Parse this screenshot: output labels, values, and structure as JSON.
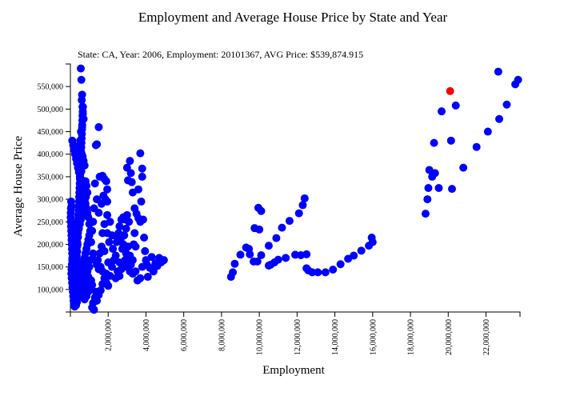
{
  "colors": {
    "point": "#0000ff",
    "highlight": "#ff0000",
    "axis": "#000000"
  },
  "chart_data": {
    "type": "scatter",
    "title": "Employment and Average House Price by State and Year",
    "subtitle": "State: CA, Year: 2006, Employment: 20101367, AVG Price: $539,874.915",
    "xlabel": "Employment",
    "ylabel": "Average House Price",
    "xlim": [
      0,
      23800000
    ],
    "ylim": [
      50000,
      600000
    ],
    "x_ticks": [
      2000000,
      4000000,
      6000000,
      8000000,
      10000000,
      12000000,
      14000000,
      16000000,
      18000000,
      20000000,
      22000000
    ],
    "x_tick_labels": [
      "2,000,000",
      "4,000,000",
      "6,000,000",
      "8,000,000",
      "10,000,000",
      "12,000,000",
      "14,000,000",
      "16,000,000",
      "18,000,000",
      "20,000,000",
      "22,000,000"
    ],
    "y_ticks": [
      100000,
      150000,
      200000,
      250000,
      300000,
      350000,
      400000,
      450000,
      500000,
      550000
    ],
    "y_tick_labels": [
      "100,000",
      "150,000",
      "200,000",
      "250,000",
      "300,000",
      "350,000",
      "400,000",
      "450,000",
      "500,000",
      "550,000"
    ],
    "grid": false,
    "highlight": {
      "x": 20101367,
      "y": 539875
    },
    "points": [
      [
        18800000,
        268000
      ],
      [
        18900000,
        300000
      ],
      [
        18950000,
        325000
      ],
      [
        19000000,
        365000
      ],
      [
        19150000,
        350000
      ],
      [
        19300000,
        358000
      ],
      [
        19250000,
        425000
      ],
      [
        19500000,
        325000
      ],
      [
        19650000,
        495000
      ],
      [
        20150000,
        430000
      ],
      [
        20200000,
        323000
      ],
      [
        20400000,
        508000
      ],
      [
        20800000,
        370000
      ],
      [
        21500000,
        416000
      ],
      [
        22100000,
        450000
      ],
      [
        22700000,
        478000
      ],
      [
        23100000,
        510000
      ],
      [
        22650000,
        583000
      ],
      [
        23550000,
        555000
      ],
      [
        23700000,
        565000
      ],
      [
        8500000,
        128000
      ],
      [
        8600000,
        138000
      ],
      [
        8700000,
        157000
      ],
      [
        9000000,
        177000
      ],
      [
        9300000,
        193000
      ],
      [
        9450000,
        190000
      ],
      [
        9500000,
        178000
      ],
      [
        9700000,
        162000
      ],
      [
        9900000,
        162000
      ],
      [
        9750000,
        236000
      ],
      [
        10000000,
        233000
      ],
      [
        9950000,
        281000
      ],
      [
        10100000,
        274000
      ],
      [
        10100000,
        176000
      ],
      [
        10500000,
        153000
      ],
      [
        10600000,
        155000
      ],
      [
        10500000,
        197000
      ],
      [
        10800000,
        160000
      ],
      [
        11000000,
        166000
      ],
      [
        10900000,
        214000
      ],
      [
        11200000,
        237000
      ],
      [
        11400000,
        170000
      ],
      [
        11600000,
        252000
      ],
      [
        11900000,
        177000
      ],
      [
        12100000,
        269000
      ],
      [
        12200000,
        176000
      ],
      [
        12300000,
        287000
      ],
      [
        12400000,
        302000
      ],
      [
        12500000,
        147000
      ],
      [
        12500000,
        178000
      ],
      [
        12600000,
        142000
      ],
      [
        12800000,
        138000
      ],
      [
        13100000,
        138000
      ],
      [
        13500000,
        138000
      ],
      [
        13900000,
        144000
      ],
      [
        14300000,
        156000
      ],
      [
        14700000,
        168000
      ],
      [
        15000000,
        175000
      ],
      [
        15400000,
        186000
      ],
      [
        15800000,
        197000
      ],
      [
        16000000,
        205000
      ],
      [
        15950000,
        215000
      ],
      [
        3000000,
        370000
      ],
      [
        3050000,
        342000
      ],
      [
        3200000,
        358000
      ],
      [
        3150000,
        385000
      ],
      [
        3250000,
        338000
      ],
      [
        3300000,
        315000
      ],
      [
        3400000,
        280000
      ],
      [
        3500000,
        268000
      ],
      [
        3600000,
        322000
      ],
      [
        3700000,
        402000
      ],
      [
        3800000,
        368000
      ],
      [
        3800000,
        350000
      ],
      [
        3750000,
        295000
      ],
      [
        3850000,
        255000
      ],
      [
        3900000,
        215000
      ],
      [
        3950000,
        185000
      ],
      [
        4000000,
        165000
      ],
      [
        4050000,
        155000
      ],
      [
        4200000,
        148000
      ],
      [
        4300000,
        172000
      ],
      [
        4500000,
        158000
      ],
      [
        4700000,
        170000
      ],
      [
        4800000,
        160000
      ],
      [
        4950000,
        165000
      ],
      [
        3600000,
        258000
      ],
      [
        3700000,
        250000
      ],
      [
        3450000,
        140000
      ],
      [
        3550000,
        120000
      ],
      [
        3700000,
        125000
      ],
      [
        3800000,
        150000
      ],
      [
        4100000,
        128000
      ],
      [
        4400000,
        140000
      ],
      [
        4600000,
        152000
      ],
      [
        1500000,
        460000
      ],
      [
        1350000,
        420000
      ],
      [
        1400000,
        422000
      ],
      [
        1550000,
        350000
      ],
      [
        1700000,
        352000
      ],
      [
        1800000,
        345000
      ],
      [
        1900000,
        340000
      ],
      [
        1950000,
        322000
      ],
      [
        1850000,
        300000
      ],
      [
        1750000,
        308000
      ],
      [
        1650000,
        290000
      ],
      [
        1500000,
        270000
      ],
      [
        1400000,
        300000
      ],
      [
        1300000,
        335000
      ],
      [
        1250000,
        280000
      ],
      [
        1200000,
        250000
      ],
      [
        1150000,
        230000
      ],
      [
        1100000,
        205000
      ],
      [
        1200000,
        180000
      ],
      [
        1300000,
        165000
      ],
      [
        1400000,
        155000
      ],
      [
        1500000,
        145000
      ],
      [
        1600000,
        150000
      ],
      [
        1700000,
        140000
      ],
      [
        1800000,
        125000
      ],
      [
        1900000,
        115000
      ],
      [
        2000000,
        108000
      ],
      [
        1350000,
        95000
      ],
      [
        1300000,
        82000
      ],
      [
        1200000,
        70000
      ],
      [
        1150000,
        60000
      ],
      [
        1250000,
        55000
      ],
      [
        1400000,
        75000
      ],
      [
        1500000,
        88000
      ],
      [
        1600000,
        98000
      ],
      [
        1700000,
        112000
      ],
      [
        1900000,
        135000
      ],
      [
        2000000,
        160000
      ],
      [
        2050000,
        205000
      ],
      [
        1950000,
        225000
      ],
      [
        1950000,
        265000
      ],
      [
        1800000,
        245000
      ],
      [
        1700000,
        225000
      ],
      [
        1650000,
        195000
      ],
      [
        1550000,
        180000
      ],
      [
        1450000,
        165000
      ],
      [
        1800000,
        185000
      ],
      [
        1950000,
        295000
      ],
      [
        2100000,
        250000
      ],
      [
        2200000,
        220000
      ],
      [
        2250000,
        190000
      ],
      [
        2300000,
        165000
      ],
      [
        2100000,
        130000
      ],
      [
        2200000,
        150000
      ],
      [
        2400000,
        175000
      ],
      [
        2450000,
        205000
      ],
      [
        2500000,
        215000
      ],
      [
        2550000,
        225000
      ],
      [
        2600000,
        240000
      ],
      [
        2700000,
        255000
      ],
      [
        2800000,
        260000
      ],
      [
        2900000,
        255000
      ],
      [
        3000000,
        265000
      ],
      [
        3100000,
        250000
      ],
      [
        2500000,
        140000
      ],
      [
        2600000,
        130000
      ],
      [
        2700000,
        145000
      ],
      [
        2800000,
        155000
      ],
      [
        2900000,
        165000
      ],
      [
        3000000,
        150000
      ],
      [
        2400000,
        125000
      ],
      [
        2600000,
        160000
      ],
      [
        2750000,
        190000
      ],
      [
        2650000,
        210000
      ],
      [
        2850000,
        220000
      ],
      [
        2950000,
        235000
      ],
      [
        3050000,
        195000
      ],
      [
        3150000,
        175000
      ],
      [
        3200000,
        155000
      ],
      [
        3300000,
        165000
      ],
      [
        3350000,
        200000
      ],
      [
        3400000,
        225000
      ],
      [
        3450000,
        195000
      ],
      [
        3300000,
        135000
      ],
      [
        3150000,
        140000
      ],
      [
        2950000,
        180000
      ],
      [
        2800000,
        200000
      ],
      [
        550000,
        590000
      ],
      [
        580000,
        565000
      ],
      [
        620000,
        532000
      ],
      [
        600000,
        520000
      ],
      [
        640000,
        505000
      ],
      [
        660000,
        490000
      ],
      [
        700000,
        478000
      ],
      [
        620000,
        460000
      ],
      [
        560000,
        450000
      ],
      [
        520000,
        430000
      ],
      [
        480000,
        420000
      ],
      [
        550000,
        412000
      ],
      [
        600000,
        400000
      ],
      [
        650000,
        395000
      ],
      [
        700000,
        385000
      ],
      [
        750000,
        375000
      ],
      [
        800000,
        340000
      ],
      [
        850000,
        330000
      ],
      [
        900000,
        315000
      ],
      [
        820000,
        305000
      ],
      [
        760000,
        295000
      ],
      [
        700000,
        285000
      ],
      [
        650000,
        275000
      ],
      [
        600000,
        265000
      ],
      [
        550000,
        255000
      ],
      [
        500000,
        245000
      ],
      [
        450000,
        235000
      ],
      [
        400000,
        225000
      ],
      [
        350000,
        215000
      ],
      [
        300000,
        205000
      ],
      [
        250000,
        195000
      ],
      [
        200000,
        185000
      ],
      [
        150000,
        175000
      ],
      [
        100000,
        165000
      ],
      [
        80000,
        155000
      ],
      [
        60000,
        145000
      ],
      [
        50000,
        135000
      ],
      [
        70000,
        125000
      ],
      [
        90000,
        115000
      ],
      [
        110000,
        105000
      ],
      [
        130000,
        95000
      ],
      [
        150000,
        85000
      ],
      [
        170000,
        75000
      ],
      [
        190000,
        68000
      ],
      [
        250000,
        70000
      ],
      [
        300000,
        80000
      ],
      [
        350000,
        90000
      ],
      [
        400000,
        100000
      ],
      [
        450000,
        110000
      ],
      [
        500000,
        120000
      ],
      [
        550000,
        130000
      ],
      [
        600000,
        140000
      ],
      [
        650000,
        150000
      ],
      [
        700000,
        160000
      ],
      [
        750000,
        170000
      ],
      [
        800000,
        180000
      ],
      [
        850000,
        190000
      ],
      [
        900000,
        200000
      ],
      [
        950000,
        210000
      ],
      [
        1000000,
        220000
      ],
      [
        1050000,
        230000
      ],
      [
        1000000,
        245000
      ],
      [
        950000,
        260000
      ],
      [
        900000,
        270000
      ],
      [
        850000,
        280000
      ],
      [
        800000,
        290000
      ],
      [
        750000,
        300000
      ],
      [
        700000,
        310000
      ],
      [
        650000,
        320000
      ],
      [
        600000,
        330000
      ],
      [
        550000,
        340000
      ],
      [
        500000,
        350000
      ],
      [
        450000,
        360000
      ],
      [
        400000,
        370000
      ],
      [
        350000,
        380000
      ],
      [
        300000,
        390000
      ],
      [
        250000,
        400000
      ],
      [
        200000,
        410000
      ],
      [
        150000,
        420000
      ],
      [
        100000,
        430000
      ],
      [
        60000,
        285000
      ],
      [
        40000,
        295000
      ],
      [
        30000,
        280000
      ],
      [
        20000,
        270000
      ],
      [
        15000,
        260000
      ],
      [
        25000,
        250000
      ],
      [
        35000,
        240000
      ],
      [
        45000,
        230000
      ],
      [
        55000,
        220000
      ],
      [
        65000,
        210000
      ],
      [
        75000,
        200000
      ],
      [
        85000,
        190000
      ],
      [
        95000,
        180000
      ],
      [
        105000,
        170000
      ],
      [
        115000,
        160000
      ],
      [
        125000,
        150000
      ],
      [
        135000,
        140000
      ],
      [
        145000,
        130000
      ],
      [
        155000,
        120000
      ],
      [
        165000,
        110000
      ],
      [
        175000,
        100000
      ],
      [
        185000,
        90000
      ],
      [
        195000,
        80000
      ],
      [
        205000,
        72000
      ],
      [
        215000,
        66000
      ],
      [
        225000,
        62000
      ],
      [
        235000,
        75000
      ],
      [
        245000,
        85000
      ],
      [
        255000,
        95000
      ],
      [
        265000,
        105000
      ],
      [
        275000,
        115000
      ],
      [
        285000,
        125000
      ],
      [
        295000,
        135000
      ],
      [
        305000,
        145000
      ],
      [
        315000,
        155000
      ],
      [
        325000,
        165000
      ],
      [
        335000,
        175000
      ],
      [
        345000,
        185000
      ],
      [
        355000,
        195000
      ],
      [
        365000,
        205000
      ],
      [
        375000,
        215000
      ],
      [
        385000,
        225000
      ],
      [
        395000,
        235000
      ],
      [
        405000,
        245000
      ],
      [
        415000,
        255000
      ],
      [
        425000,
        265000
      ],
      [
        435000,
        275000
      ],
      [
        445000,
        285000
      ],
      [
        455000,
        295000
      ],
      [
        465000,
        305000
      ],
      [
        475000,
        315000
      ],
      [
        485000,
        325000
      ],
      [
        495000,
        335000
      ],
      [
        505000,
        345000
      ],
      [
        515000,
        355000
      ],
      [
        525000,
        365000
      ],
      [
        535000,
        375000
      ],
      [
        545000,
        385000
      ],
      [
        555000,
        395000
      ],
      [
        565000,
        405000
      ],
      [
        575000,
        415000
      ],
      [
        585000,
        425000
      ],
      [
        595000,
        435000
      ],
      [
        605000,
        445000
      ],
      [
        615000,
        455000
      ],
      [
        625000,
        465000
      ],
      [
        635000,
        475000
      ],
      [
        645000,
        485000
      ],
      [
        655000,
        495000
      ],
      [
        665000,
        505000
      ],
      [
        600000,
        380000
      ],
      [
        580000,
        362000
      ],
      [
        560000,
        345000
      ],
      [
        540000,
        328000
      ],
      [
        520000,
        312000
      ],
      [
        500000,
        296000
      ],
      [
        480000,
        280000
      ],
      [
        460000,
        264000
      ],
      [
        440000,
        248000
      ],
      [
        420000,
        232000
      ],
      [
        400000,
        216000
      ],
      [
        380000,
        200000
      ],
      [
        360000,
        184000
      ],
      [
        340000,
        168000
      ],
      [
        320000,
        152000
      ],
      [
        300000,
        136000
      ],
      [
        280000,
        120000
      ],
      [
        260000,
        104000
      ],
      [
        240000,
        88000
      ],
      [
        900000,
        140000
      ],
      [
        950000,
        128000
      ],
      [
        1000000,
        150000
      ],
      [
        1050000,
        165000
      ],
      [
        1100000,
        120000
      ],
      [
        1150000,
        110000
      ],
      [
        1050000,
        100000
      ],
      [
        950000,
        95000
      ],
      [
        850000,
        85000
      ],
      [
        750000,
        78000
      ],
      [
        700000,
        92000
      ],
      [
        800000,
        105000
      ],
      [
        850000,
        118000
      ],
      [
        750000,
        135000
      ],
      [
        700000,
        148000
      ],
      [
        650000,
        128000
      ],
      [
        600000,
        115000
      ],
      [
        550000,
        102000
      ],
      [
        450000,
        92000
      ],
      [
        400000,
        82000
      ],
      [
        350000,
        72000
      ],
      [
        300000,
        65000
      ]
    ]
  }
}
